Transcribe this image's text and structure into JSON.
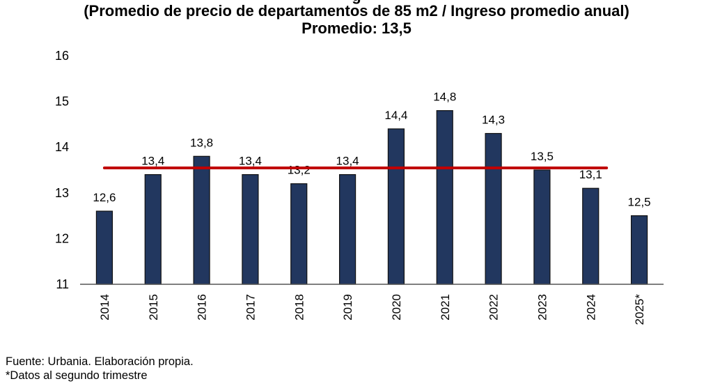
{
  "chart_data": {
    "type": "bar",
    "title": "(Promedio de precio de departamentos de 85 m2 / Ingreso promedio anual)",
    "title_partial_top": "g",
    "subtitle": "Promedio: 13,5",
    "xlabel": "",
    "ylabel": "",
    "categories": [
      "2014",
      "2015",
      "2016",
      "2017",
      "2018",
      "2019",
      "2020",
      "2021",
      "2022",
      "2023",
      "2024",
      "2025*"
    ],
    "values": [
      12.6,
      13.4,
      13.8,
      13.4,
      13.2,
      13.4,
      14.4,
      14.8,
      14.3,
      13.5,
      13.1,
      12.5
    ],
    "data_labels": [
      "12,6",
      "13,4",
      "13,8",
      "13,4",
      "13,2",
      "13,4",
      "14,4",
      "14,8",
      "14,3",
      "13,5",
      "13,1",
      "12,5"
    ],
    "ylim": [
      11,
      16
    ],
    "yticks": [
      11,
      12,
      13,
      14,
      15,
      16
    ],
    "ytick_labels": [
      "11",
      "12",
      "13",
      "14",
      "15",
      "16"
    ],
    "reference_line": {
      "label": "Promedio",
      "value": 13.5
    },
    "grid": false,
    "legend": "none",
    "colors": {
      "bar": "#22375f",
      "bar_edge": "#111111",
      "average_line": "#c00000",
      "axis": "#555555"
    }
  },
  "footer": {
    "source": "Fuente: Urbania. Elaboración propia.",
    "note": "*Datos al segundo trimestre"
  }
}
